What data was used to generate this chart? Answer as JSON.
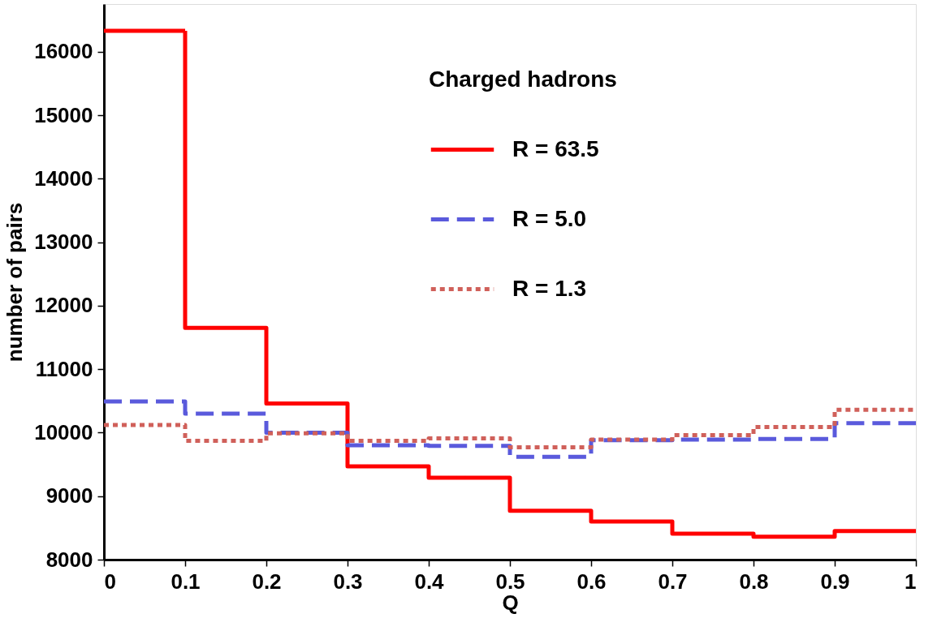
{
  "chart_data": {
    "type": "histogram",
    "xlabel": "Q",
    "ylabel": "number of pairs",
    "legend_title": "Charged hadrons",
    "legend": "top right",
    "grid": false,
    "bins": [
      0,
      0.1,
      0.2,
      0.3,
      0.4,
      0.5,
      0.6,
      0.7,
      0.8,
      0.9,
      1
    ],
    "xlim": [
      0,
      1
    ],
    "xticks": [
      0,
      0.1,
      0.2,
      0.3,
      0.4,
      0.5,
      0.6,
      0.7,
      0.8,
      0.9,
      1
    ],
    "ylim": [
      8000,
      16750
    ],
    "yticks": [
      8000,
      9000,
      10000,
      11000,
      12000,
      13000,
      14000,
      15000,
      16000
    ],
    "series": [
      {
        "name": "R = 63.5",
        "color": "#ff0000",
        "line_style": "solid",
        "values": [
          16330,
          11650,
          10460,
          9470,
          9290,
          8770,
          8600,
          8410,
          8360,
          8450
        ]
      },
      {
        "name": "R = 5.0",
        "color": "#5a5adc",
        "line_style": "dashed",
        "values": [
          10490,
          10300,
          10000,
          9800,
          9790,
          9620,
          9880,
          9890,
          9900,
          10150
        ]
      },
      {
        "name": "R = 1.3",
        "color": "#d0605a",
        "line_style": "dotted",
        "values": [
          10120,
          9870,
          9990,
          9870,
          9910,
          9770,
          9890,
          9960,
          10090,
          10360
        ]
      }
    ]
  }
}
